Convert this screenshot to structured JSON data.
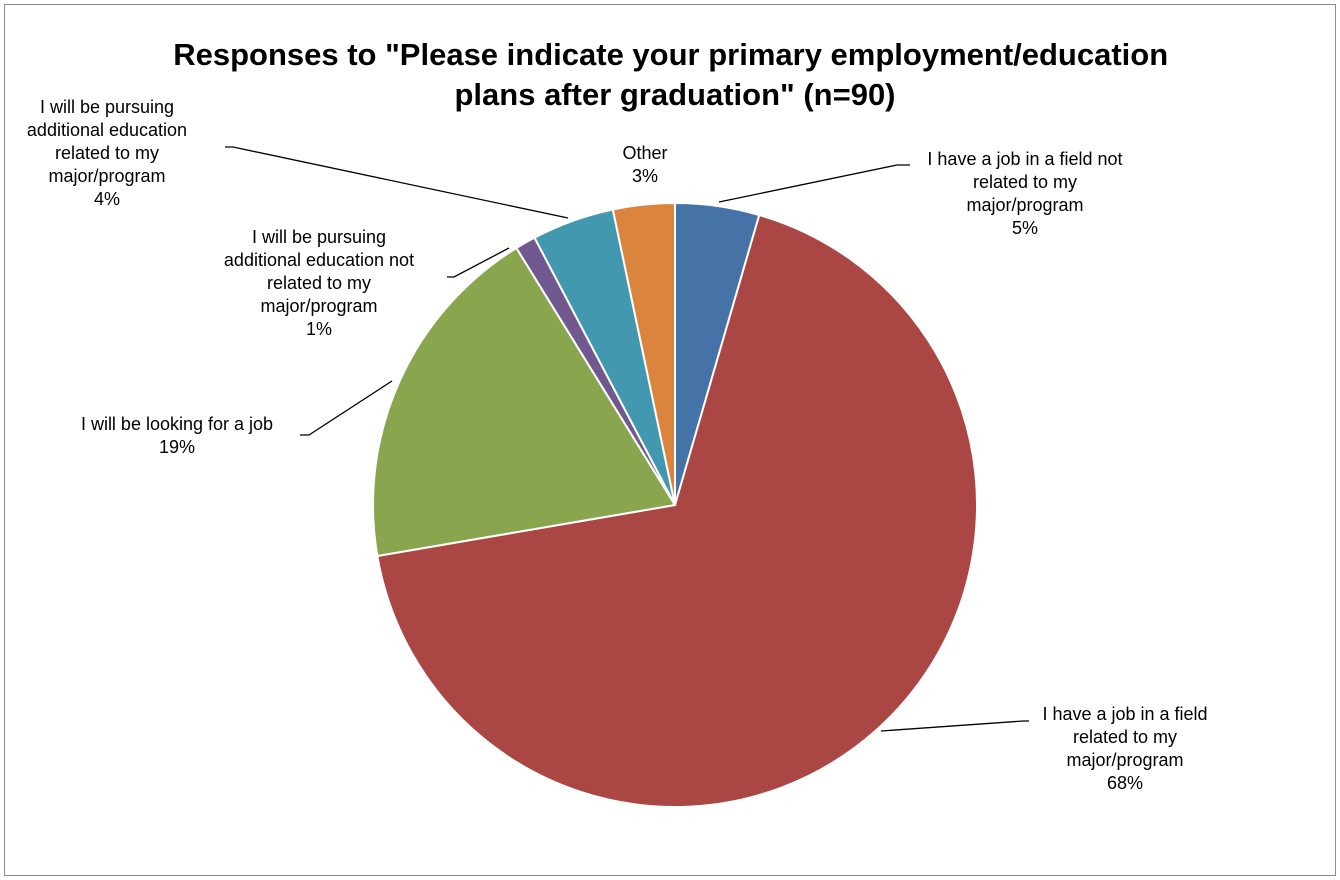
{
  "chart_data": {
    "type": "pie",
    "title": "Responses to \"Please indicate your primary employment/education plans after graduation\" (n=90)",
    "title_lines": [
      "Responses to \"Please indicate your primary employment/education",
      "plans after graduation\" (n=90)"
    ],
    "start_angle_deg": 0,
    "direction": "clockwise",
    "slices": [
      {
        "label": "I have a job in a field not related to my major/program",
        "label_lines": [
          "I have a job in a field not",
          "related to my",
          "major/program"
        ],
        "value": 4.5,
        "pct_label": "5%",
        "color": "#4572A7"
      },
      {
        "label": "I have a job in a field related to my major/program",
        "label_lines": [
          "I have a job in a field",
          "related to my",
          "major/program"
        ],
        "value": 67.8,
        "pct_label": "68%",
        "color": "#AA4643"
      },
      {
        "label": "I will be looking for a job",
        "label_lines": [
          "I will be looking for a job"
        ],
        "value": 18.9,
        "pct_label": "19%",
        "color": "#89A54E"
      },
      {
        "label": "I will be pursuing additional education not related to my major/program",
        "label_lines": [
          "I will be pursuing",
          "additional education not",
          "related to my",
          "major/program"
        ],
        "value": 1.1,
        "pct_label": "1%",
        "color": "#71588F"
      },
      {
        "label": "I will be pursuing additional education related to my major/program",
        "label_lines": [
          "I will be pursuing",
          "additional education",
          "related to my",
          "major/program"
        ],
        "value": 4.4,
        "pct_label": "4%",
        "color": "#4198AF"
      },
      {
        "label": "Other",
        "label_lines": [
          "Other"
        ],
        "value": 3.3,
        "pct_label": "3%",
        "color": "#DB843D"
      }
    ]
  }
}
